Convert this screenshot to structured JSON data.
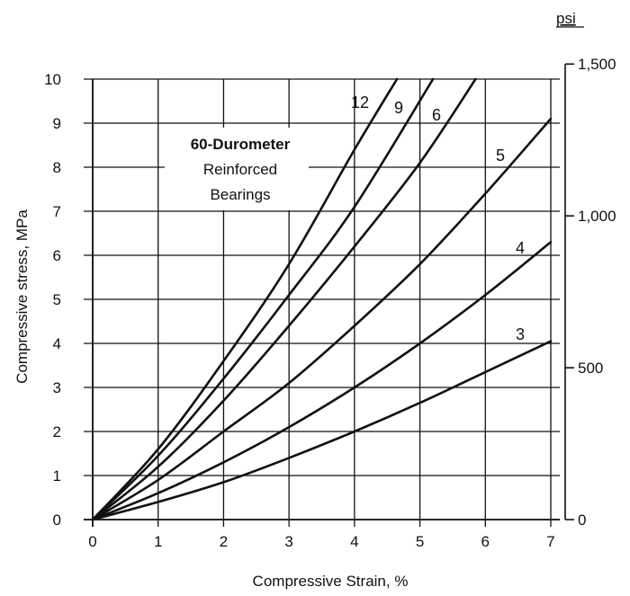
{
  "chart_data": {
    "type": "line",
    "title": "",
    "xlabel": "Compressive Strain, %",
    "ylabel": "Compressive stress, MPa",
    "xlim": [
      0,
      7
    ],
    "ylim": [
      0,
      10
    ],
    "x_ticks": [
      "0",
      "1",
      "2",
      "3",
      "4",
      "5",
      "6",
      "7"
    ],
    "y_ticks": [
      "0",
      "1",
      "2",
      "3",
      "4",
      "5",
      "6",
      "7",
      "8",
      "9",
      "10"
    ],
    "secondary_axis": {
      "unit": "psi",
      "ticks": [
        "0",
        "500",
        "1,000",
        "1,500"
      ],
      "tick_values_mpa": [
        0,
        3.447,
        6.895,
        10.342
      ]
    },
    "grid": true,
    "annotation": {
      "line1": "60-Durometer",
      "line2": "Reinforced",
      "line3": "Bearings"
    },
    "series": [
      {
        "name": "12",
        "x": [
          0,
          1,
          2,
          3,
          4,
          4.65
        ],
        "y": [
          0,
          1.6,
          3.6,
          5.8,
          8.4,
          10
        ]
      },
      {
        "name": "9",
        "x": [
          0,
          1,
          2,
          3,
          4,
          5.2
        ],
        "y": [
          0,
          1.45,
          3.2,
          5.1,
          7.1,
          10
        ]
      },
      {
        "name": "6",
        "x": [
          0,
          1,
          2,
          3,
          4,
          5,
          5.85
        ],
        "y": [
          0,
          1.2,
          2.7,
          4.4,
          6.2,
          8.1,
          10
        ]
      },
      {
        "name": "5",
        "x": [
          0,
          1,
          2,
          3,
          4,
          5,
          6,
          7
        ],
        "y": [
          0,
          0.9,
          2.0,
          3.1,
          4.4,
          5.8,
          7.4,
          9.1
        ]
      },
      {
        "name": "4",
        "x": [
          0,
          1,
          2,
          3,
          4,
          5,
          6,
          7
        ],
        "y": [
          0,
          0.6,
          1.3,
          2.1,
          3.0,
          4.0,
          5.1,
          6.3
        ]
      },
      {
        "name": "3",
        "x": [
          0,
          1,
          2,
          3,
          4,
          5,
          6,
          7
        ],
        "y": [
          0,
          0.4,
          0.85,
          1.4,
          2.0,
          2.65,
          3.35,
          4.05
        ]
      }
    ]
  }
}
